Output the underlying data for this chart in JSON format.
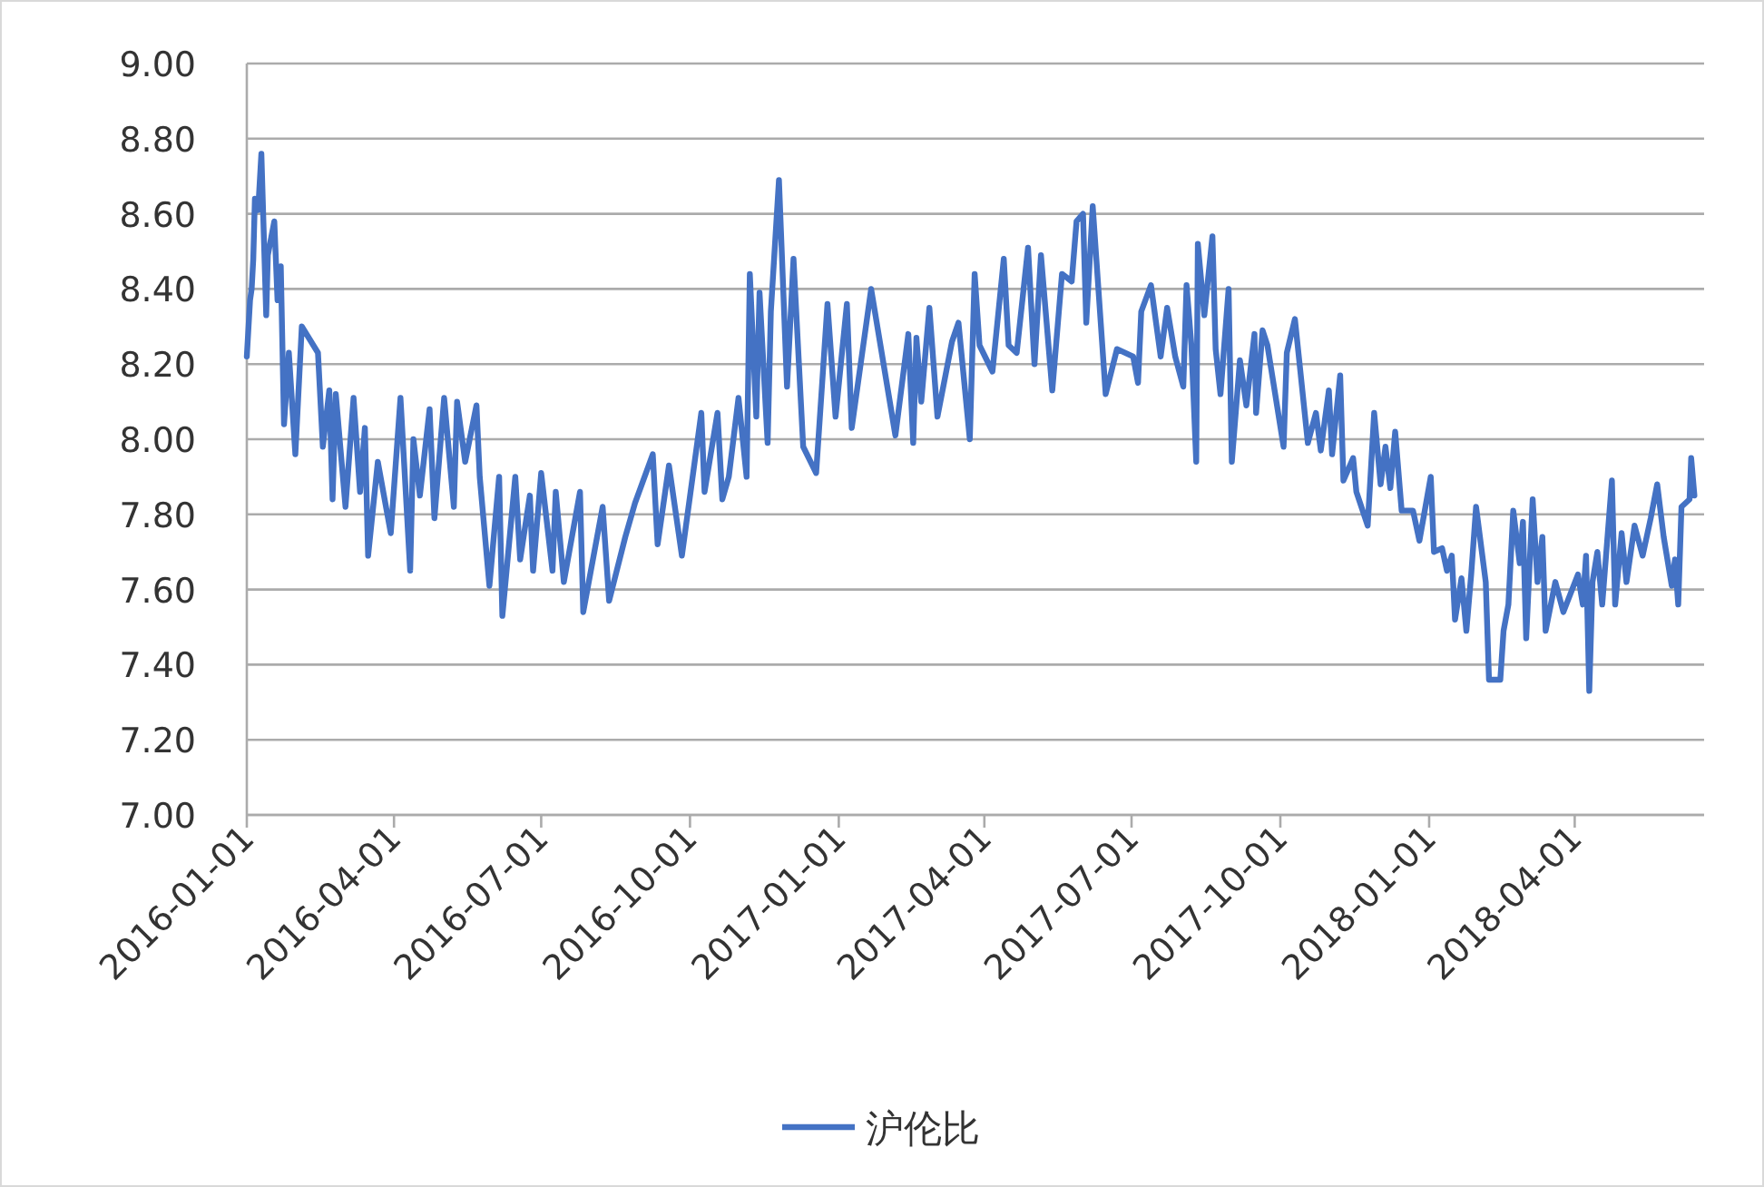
{
  "chart_data": {
    "type": "line",
    "xlim": [
      "2016-01-01",
      "2018-06-20"
    ],
    "xticks": [
      "2016-01-01",
      "2016-04-01",
      "2016-07-01",
      "2016-10-01",
      "2017-01-01",
      "2017-04-01",
      "2017-07-01",
      "2017-10-01",
      "2018-01-01",
      "2018-04-01"
    ],
    "ylim": [
      7,
      9
    ],
    "yticks": [
      {
        "value": 7,
        "label": "7.00"
      },
      {
        "value": 7.2,
        "label": "7.20"
      },
      {
        "value": 7.4,
        "label": "7.40"
      },
      {
        "value": 7.6,
        "label": "7.60"
      },
      {
        "value": 7.8,
        "label": "7.80"
      },
      {
        "value": 8,
        "label": "8.00"
      },
      {
        "value": 8.2,
        "label": "8.20"
      },
      {
        "value": 8.4,
        "label": "8.40"
      },
      {
        "value": 8.6,
        "label": "8.60"
      },
      {
        "value": 8.8,
        "label": "8.80"
      },
      {
        "value": 9,
        "label": "9.00"
      }
    ],
    "grid": "y",
    "legend": "bottom",
    "series": [
      {
        "name": "沪伦比",
        "color": "#4472c4",
        "x": [
          "2016-01-01",
          "2016-01-03",
          "2016-01-04",
          "2016-01-05",
          "2016-01-06",
          "2016-01-08",
          "2016-01-10",
          "2016-01-13",
          "2016-01-14",
          "2016-01-18",
          "2016-01-20",
          "2016-01-22",
          "2016-01-24",
          "2016-01-27",
          "2016-01-31",
          "2016-02-04",
          "2016-02-14",
          "2016-02-17",
          "2016-02-21",
          "2016-02-23",
          "2016-02-25",
          "2016-03-02",
          "2016-03-07",
          "2016-03-11",
          "2016-03-14",
          "2016-03-16",
          "2016-03-22",
          "2016-03-30",
          "2016-04-05",
          "2016-04-11",
          "2016-04-13",
          "2016-04-17",
          "2016-04-23",
          "2016-04-26",
          "2016-05-02",
          "2016-05-08",
          "2016-05-10",
          "2016-05-15",
          "2016-05-22",
          "2016-05-24",
          "2016-05-30",
          "2016-06-05",
          "2016-06-07",
          "2016-06-15",
          "2016-06-18",
          "2016-06-24",
          "2016-06-26",
          "2016-07-01",
          "2016-07-08",
          "2016-07-10",
          "2016-07-15",
          "2016-07-25",
          "2016-07-27",
          "2016-08-08",
          "2016-08-12",
          "2016-08-22",
          "2016-08-28",
          "2016-09-08",
          "2016-09-11",
          "2016-09-18",
          "2016-09-26",
          "2016-10-08",
          "2016-10-10",
          "2016-10-18",
          "2016-10-21",
          "2016-10-25",
          "2016-10-31",
          "2016-11-05",
          "2016-11-07",
          "2016-11-11",
          "2016-11-13",
          "2016-11-18",
          "2016-11-20",
          "2016-11-25",
          "2016-11-30",
          "2016-12-04",
          "2016-12-10",
          "2016-12-18",
          "2016-12-25",
          "2016-12-30",
          "2017-01-06",
          "2017-01-09",
          "2017-01-21",
          "2017-02-05",
          "2017-02-13",
          "2017-02-16",
          "2017-02-18",
          "2017-02-21",
          "2017-02-26",
          "2017-03-03",
          "2017-03-12",
          "2017-03-16",
          "2017-03-23",
          "2017-03-26",
          "2017-03-29",
          "2017-04-06",
          "2017-04-13",
          "2017-04-16",
          "2017-04-21",
          "2017-04-28",
          "2017-05-02",
          "2017-05-06",
          "2017-05-13",
          "2017-05-19",
          "2017-05-25",
          "2017-05-28",
          "2017-06-01",
          "2017-06-03",
          "2017-06-07",
          "2017-06-15",
          "2017-06-22",
          "2017-07-02",
          "2017-07-05",
          "2017-07-07",
          "2017-07-13",
          "2017-07-19",
          "2017-07-23",
          "2017-07-28",
          "2017-08-02",
          "2017-08-04",
          "2017-08-07",
          "2017-08-10",
          "2017-08-11",
          "2017-08-15",
          "2017-08-20",
          "2017-08-22",
          "2017-08-25",
          "2017-08-30",
          "2017-09-01",
          "2017-09-06",
          "2017-09-10",
          "2017-09-15",
          "2017-09-16",
          "2017-09-20",
          "2017-09-23",
          "2017-10-03",
          "2017-10-05",
          "2017-10-10",
          "2017-10-18",
          "2017-10-23",
          "2017-10-26",
          "2017-10-31",
          "2017-11-02",
          "2017-11-07",
          "2017-11-09",
          "2017-11-15",
          "2017-11-17",
          "2017-11-24",
          "2017-11-28",
          "2017-12-02",
          "2017-12-05",
          "2017-12-08",
          "2017-12-11",
          "2017-12-15",
          "2017-12-22",
          "2017-12-26",
          "2018-01-02",
          "2018-01-04",
          "2018-01-09",
          "2018-01-12",
          "2018-01-15",
          "2018-01-17",
          "2018-01-21",
          "2018-01-24",
          "2018-01-27",
          "2018-01-30",
          "2018-02-05",
          "2018-02-07",
          "2018-02-14",
          "2018-02-16",
          "2018-02-19",
          "2018-02-22",
          "2018-02-26",
          "2018-02-28",
          "2018-03-02",
          "2018-03-06",
          "2018-03-09",
          "2018-03-12",
          "2018-03-14",
          "2018-03-20",
          "2018-03-25",
          "2018-04-03",
          "2018-04-06",
          "2018-04-08",
          "2018-04-10",
          "2018-04-12",
          "2018-04-15",
          "2018-04-18",
          "2018-04-24",
          "2018-04-26",
          "2018-04-30",
          "2018-05-03",
          "2018-05-08",
          "2018-05-13",
          "2018-05-18",
          "2018-05-22",
          "2018-05-26",
          "2018-05-31",
          "2018-06-02",
          "2018-06-04",
          "2018-06-06",
          "2018-06-11",
          "2018-06-12",
          "2018-06-14"
        ],
        "values": [
          8.22,
          8.37,
          8.4,
          8.48,
          8.64,
          8.61,
          8.76,
          8.33,
          8.49,
          8.58,
          8.37,
          8.46,
          8.04,
          8.23,
          7.96,
          8.3,
          8.23,
          7.98,
          8.13,
          7.84,
          8.12,
          7.82,
          8.11,
          7.86,
          8.03,
          7.69,
          7.94,
          7.75,
          8.11,
          7.65,
          8.0,
          7.85,
          8.08,
          7.79,
          8.11,
          7.82,
          8.1,
          7.94,
          8.09,
          7.9,
          7.61,
          7.9,
          7.53,
          7.9,
          7.68,
          7.85,
          7.65,
          7.91,
          7.65,
          7.86,
          7.62,
          7.86,
          7.54,
          7.82,
          7.57,
          7.74,
          7.83,
          7.96,
          7.72,
          7.93,
          7.69,
          8.07,
          7.86,
          8.07,
          7.84,
          7.9,
          8.11,
          7.9,
          8.44,
          8.06,
          8.39,
          7.99,
          8.34,
          8.69,
          8.14,
          8.48,
          7.98,
          7.91,
          8.36,
          8.06,
          8.36,
          8.03,
          8.4,
          8.01,
          8.28,
          7.99,
          8.27,
          8.1,
          8.35,
          8.06,
          8.26,
          8.31,
          8.0,
          8.44,
          8.25,
          8.18,
          8.48,
          8.25,
          8.23,
          8.51,
          8.2,
          8.49,
          8.13,
          8.44,
          8.42,
          8.58,
          8.6,
          8.31,
          8.62,
          8.12,
          8.24,
          8.22,
          8.15,
          8.34,
          8.41,
          8.22,
          8.35,
          8.22,
          8.14,
          8.41,
          8.25,
          7.94,
          8.52,
          8.33,
          8.54,
          8.24,
          8.12,
          8.4,
          7.94,
          8.21,
          8.09,
          8.28,
          8.07,
          8.29,
          8.25,
          7.98,
          8.23,
          8.32,
          7.99,
          8.07,
          7.97,
          8.13,
          7.96,
          8.17,
          7.89,
          7.95,
          7.86,
          7.77,
          8.07,
          7.88,
          7.98,
          7.87,
          8.02,
          7.81,
          7.81,
          7.73,
          7.9,
          7.7,
          7.71,
          7.65,
          7.69,
          7.52,
          7.63,
          7.49,
          7.64,
          7.82,
          7.62,
          7.36,
          7.36,
          7.49,
          7.56,
          7.81,
          7.67,
          7.78,
          7.47,
          7.84,
          7.62,
          7.74,
          7.49,
          7.62,
          7.54,
          7.64,
          7.56,
          7.69,
          7.33,
          7.62,
          7.7,
          7.56,
          7.89,
          7.56,
          7.75,
          7.62,
          7.77,
          7.69,
          7.79,
          7.88,
          7.74,
          7.61,
          7.68,
          7.56,
          7.82,
          7.84,
          7.95,
          7.85
        ]
      }
    ]
  }
}
